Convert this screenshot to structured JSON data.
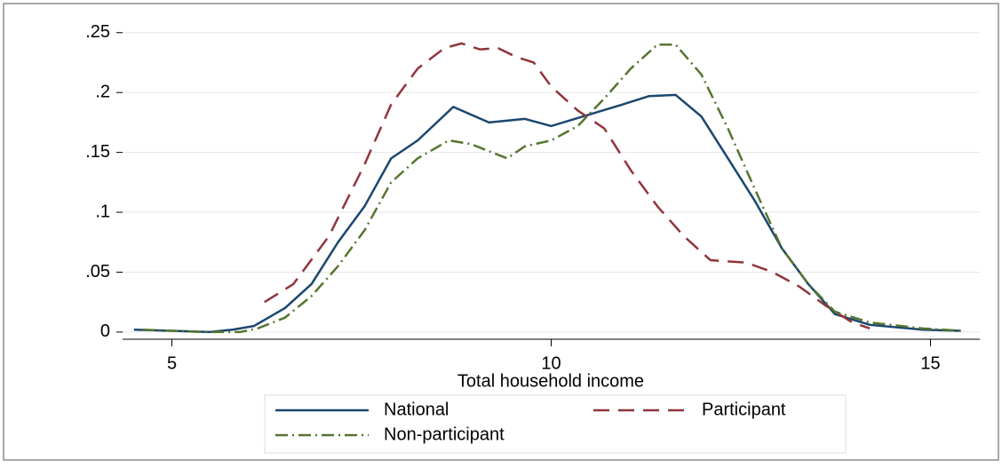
{
  "chart_data": {
    "type": "line",
    "xlabel": "Total household income",
    "xlim": [
      4.35,
      15.65
    ],
    "ylim": [
      -0.006,
      0.255
    ],
    "xticks": [
      5,
      10,
      15
    ],
    "yticks": [
      0,
      {
        "value": 0.05,
        "label": ".05"
      },
      {
        "value": 0.1,
        "label": ".1"
      },
      {
        "value": 0.15,
        "label": ".15"
      },
      {
        "value": 0.2,
        "label": ".2"
      },
      {
        "value": 0.25,
        "label": ".25"
      }
    ],
    "grid": true,
    "legend": "bottom",
    "series": [
      {
        "name": "National",
        "color": "#1a476f",
        "dash": "solid",
        "x": [
          4.5,
          5.0,
          5.5,
          5.8,
          6.08,
          6.49,
          6.84,
          7.19,
          7.54,
          7.89,
          8.24,
          8.71,
          9.18,
          9.65,
          10.0,
          10.47,
          10.94,
          11.29,
          11.64,
          11.98,
          12.33,
          12.68,
          13.04,
          13.39,
          13.74,
          14.2,
          14.9,
          15.4
        ],
        "values": [
          0.002,
          0.001,
          0.0,
          0.002,
          0.005,
          0.02,
          0.04,
          0.075,
          0.105,
          0.145,
          0.16,
          0.188,
          0.175,
          0.178,
          0.172,
          0.181,
          0.19,
          0.197,
          0.198,
          0.18,
          0.145,
          0.11,
          0.07,
          0.04,
          0.015,
          0.006,
          0.002,
          0.001
        ]
      },
      {
        "name": "Participant",
        "color": "#90353b",
        "dash": "long-dash",
        "x": [
          6.22,
          6.6,
          7.07,
          7.54,
          7.89,
          8.24,
          8.59,
          8.82,
          9.06,
          9.3,
          9.53,
          9.77,
          10.0,
          10.35,
          10.7,
          11.05,
          11.4,
          11.75,
          12.1,
          12.33,
          12.57,
          12.92,
          13.27,
          13.62,
          13.97,
          14.2
        ],
        "values": [
          0.025,
          0.04,
          0.08,
          0.14,
          0.19,
          0.22,
          0.237,
          0.241,
          0.236,
          0.237,
          0.23,
          0.225,
          0.205,
          0.185,
          0.17,
          0.135,
          0.105,
          0.08,
          0.06,
          0.059,
          0.058,
          0.05,
          0.038,
          0.022,
          0.008,
          0.003
        ]
      },
      {
        "name": "Non-participant",
        "color": "#55752f",
        "dash": "dash-dot",
        "x": [
          4.61,
          5.43,
          5.9,
          6.13,
          6.49,
          6.84,
          7.19,
          7.54,
          7.89,
          8.24,
          8.65,
          8.94,
          9.3,
          9.42,
          9.65,
          10.0,
          10.35,
          10.7,
          11.05,
          11.4,
          11.64,
          11.98,
          12.33,
          12.68,
          13.04,
          13.39,
          13.74,
          14.2,
          14.9,
          15.43
        ],
        "values": [
          0.002,
          0.0,
          0.0,
          0.003,
          0.012,
          0.03,
          0.055,
          0.085,
          0.125,
          0.145,
          0.16,
          0.157,
          0.148,
          0.145,
          0.155,
          0.16,
          0.172,
          0.195,
          0.22,
          0.24,
          0.24,
          0.215,
          0.17,
          0.12,
          0.07,
          0.04,
          0.017,
          0.008,
          0.003,
          0.001
        ]
      }
    ]
  }
}
